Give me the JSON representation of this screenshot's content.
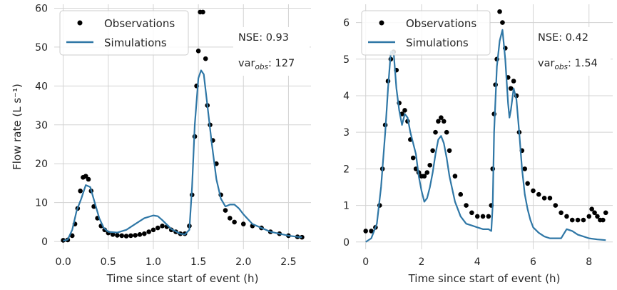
{
  "colors": {
    "observations": "#000000",
    "simulations": "#2f77a6",
    "grid": "#d3d3d3",
    "axes_bg": "#ffffff"
  },
  "chart_data": [
    {
      "type": "scatter+line",
      "panel": "left",
      "xlabel": "Time since start of event (h)",
      "ylabel": "Flow rate (L s⁻¹)",
      "xlim": [
        -0.1,
        2.75
      ],
      "ylim": [
        -2,
        61
      ],
      "xticks": [
        0.0,
        0.5,
        1.0,
        1.5,
        2.0,
        2.5
      ],
      "xtick_labels": [
        "0.0",
        "0.5",
        "1.0",
        "1.5",
        "2.0",
        "2.5"
      ],
      "yticks": [
        0,
        10,
        20,
        30,
        40,
        50,
        60
      ],
      "ytick_labels": [
        "0",
        "10",
        "20",
        "30",
        "40",
        "50",
        "60"
      ],
      "grid": true,
      "legend": {
        "placement": "top-left",
        "entries": [
          "Observations",
          "Simulations"
        ]
      },
      "annotations": [
        {
          "text_main": "NSE: 0.93"
        },
        {
          "text_base": "var",
          "text_sub": "obs",
          "text_value": ": 127"
        }
      ],
      "observations": {
        "x": [
          0.0,
          0.05,
          0.1,
          0.13,
          0.16,
          0.19,
          0.22,
          0.25,
          0.28,
          0.31,
          0.34,
          0.38,
          0.42,
          0.46,
          0.5,
          0.55,
          0.6,
          0.65,
          0.7,
          0.75,
          0.8,
          0.85,
          0.9,
          0.95,
          1.0,
          1.05,
          1.1,
          1.15,
          1.2,
          1.25,
          1.3,
          1.35,
          1.4,
          1.43,
          1.46,
          1.48,
          1.5,
          1.52,
          1.55,
          1.58,
          1.6,
          1.63,
          1.66,
          1.7,
          1.75,
          1.8,
          1.85,
          1.9,
          2.0,
          2.1,
          2.2,
          2.3,
          2.4,
          2.5,
          2.6,
          2.65
        ],
        "y": [
          0.3,
          0.4,
          1.5,
          4.5,
          8.5,
          13,
          16.5,
          16.8,
          16,
          13,
          9,
          6,
          4,
          3,
          2.2,
          1.8,
          1.6,
          1.5,
          1.4,
          1.5,
          1.6,
          1.8,
          2,
          2.5,
          3,
          3.5,
          4,
          3.8,
          3,
          2.5,
          2,
          2,
          4,
          12,
          27,
          40,
          49,
          59,
          59,
          47,
          35,
          30,
          26,
          20,
          12,
          8,
          6,
          5,
          4.5,
          4,
          3.5,
          2.5,
          2,
          1.5,
          1.2,
          1.1
        ]
      },
      "simulations": {
        "x": [
          0.0,
          0.05,
          0.1,
          0.15,
          0.2,
          0.25,
          0.3,
          0.35,
          0.4,
          0.45,
          0.5,
          0.6,
          0.7,
          0.8,
          0.9,
          1.0,
          1.05,
          1.1,
          1.2,
          1.3,
          1.35,
          1.4,
          1.43,
          1.46,
          1.5,
          1.53,
          1.56,
          1.6,
          1.65,
          1.7,
          1.75,
          1.8,
          1.85,
          1.9,
          1.95,
          2.0,
          2.1,
          2.2,
          2.3,
          2.4,
          2.5,
          2.6,
          2.65
        ],
        "y": [
          0.2,
          0.5,
          3,
          8,
          11,
          14.5,
          14,
          10,
          6,
          3.5,
          2.5,
          2.3,
          3,
          4.5,
          6,
          6.7,
          6.5,
          5.5,
          3.2,
          2,
          1.8,
          3,
          14,
          30,
          42,
          44,
          43,
          35,
          25,
          16,
          11,
          9,
          9.5,
          9.5,
          8.5,
          7,
          4.5,
          3.5,
          2.5,
          2,
          1.5,
          1.2,
          1.1
        ]
      }
    },
    {
      "type": "scatter+line",
      "panel": "right",
      "xlabel": "Time since start of event (h)",
      "ylabel": "",
      "xlim": [
        -0.35,
        8.85
      ],
      "ylim": [
        -0.2,
        6.5
      ],
      "xticks": [
        0,
        2,
        4,
        6,
        8
      ],
      "xtick_labels": [
        "0",
        "2",
        "4",
        "6",
        "8"
      ],
      "yticks": [
        0,
        1,
        2,
        3,
        4,
        5,
        6
      ],
      "ytick_labels": [
        "0",
        "1",
        "2",
        "3",
        "4",
        "5",
        "6"
      ],
      "grid": true,
      "legend": {
        "placement": "top-left",
        "entries": [
          "Observations",
          "Simulations"
        ]
      },
      "annotations": [
        {
          "text_main": "NSE: 0.42"
        },
        {
          "text_base": "var",
          "text_sub": "obs",
          "text_value": ": 1.54"
        }
      ],
      "observations": {
        "x": [
          0.0,
          0.2,
          0.35,
          0.5,
          0.6,
          0.7,
          0.8,
          0.9,
          1.0,
          1.1,
          1.2,
          1.3,
          1.4,
          1.5,
          1.6,
          1.7,
          1.8,
          1.9,
          2.0,
          2.1,
          2.2,
          2.3,
          2.4,
          2.5,
          2.6,
          2.7,
          2.8,
          2.9,
          3.0,
          3.2,
          3.4,
          3.6,
          3.8,
          4.0,
          4.2,
          4.4,
          4.5,
          4.55,
          4.6,
          4.65,
          4.7,
          4.8,
          4.9,
          5.0,
          5.1,
          5.2,
          5.3,
          5.4,
          5.5,
          5.6,
          5.7,
          5.8,
          6.0,
          6.2,
          6.4,
          6.6,
          6.8,
          7.0,
          7.2,
          7.4,
          7.6,
          7.8,
          8.0,
          8.1,
          8.2,
          8.3,
          8.4,
          8.5,
          8.6
        ],
        "y": [
          0.3,
          0.3,
          0.4,
          1.0,
          2.0,
          3.2,
          4.4,
          5.0,
          5.2,
          4.7,
          3.8,
          3.5,
          3.6,
          3.3,
          2.8,
          2.3,
          2.0,
          1.9,
          1.8,
          1.8,
          1.9,
          2.1,
          2.5,
          3.0,
          3.3,
          3.4,
          3.3,
          3.0,
          2.5,
          1.8,
          1.3,
          1.0,
          0.8,
          0.7,
          0.7,
          0.7,
          1.0,
          2.0,
          3.5,
          4.3,
          5.0,
          6.3,
          6.0,
          5.3,
          4.5,
          4.2,
          4.4,
          4.0,
          3.0,
          2.5,
          2.0,
          1.6,
          1.4,
          1.3,
          1.2,
          1.2,
          1.0,
          0.8,
          0.7,
          0.6,
          0.6,
          0.6,
          0.7,
          0.9,
          0.8,
          0.7,
          0.6,
          0.6,
          0.8
        ]
      },
      "simulations": {
        "x": [
          0.0,
          0.2,
          0.4,
          0.55,
          0.7,
          0.8,
          0.9,
          1.0,
          1.1,
          1.2,
          1.3,
          1.4,
          1.5,
          1.6,
          1.7,
          1.8,
          1.9,
          2.0,
          2.1,
          2.2,
          2.3,
          2.4,
          2.5,
          2.6,
          2.7,
          2.8,
          2.9,
          3.0,
          3.2,
          3.4,
          3.6,
          3.8,
          4.0,
          4.2,
          4.4,
          4.5,
          4.55,
          4.6,
          4.7,
          4.8,
          4.9,
          5.0,
          5.1,
          5.15,
          5.2,
          5.3,
          5.4,
          5.5,
          5.6,
          5.7,
          5.8,
          5.9,
          6.0,
          6.2,
          6.4,
          6.6,
          6.8,
          7.0,
          7.2,
          7.4,
          7.6,
          7.8,
          8.0,
          8.3,
          8.6
        ],
        "y": [
          0.0,
          0.1,
          0.5,
          1.5,
          3.0,
          4.2,
          5.2,
          5.2,
          4.2,
          3.6,
          3.2,
          3.5,
          3.4,
          3.0,
          2.7,
          2.4,
          1.8,
          1.4,
          1.1,
          1.2,
          1.5,
          1.9,
          2.4,
          2.8,
          2.9,
          2.7,
          2.3,
          1.8,
          1.1,
          0.7,
          0.5,
          0.45,
          0.4,
          0.35,
          0.35,
          0.3,
          1.0,
          3.0,
          4.8,
          5.5,
          5.8,
          5.0,
          3.8,
          3.4,
          3.6,
          4.2,
          3.9,
          3.0,
          2.0,
          1.3,
          0.9,
          0.6,
          0.4,
          0.25,
          0.15,
          0.1,
          0.1,
          0.1,
          0.35,
          0.3,
          0.2,
          0.15,
          0.1,
          0.07,
          0.05
        ]
      }
    }
  ]
}
